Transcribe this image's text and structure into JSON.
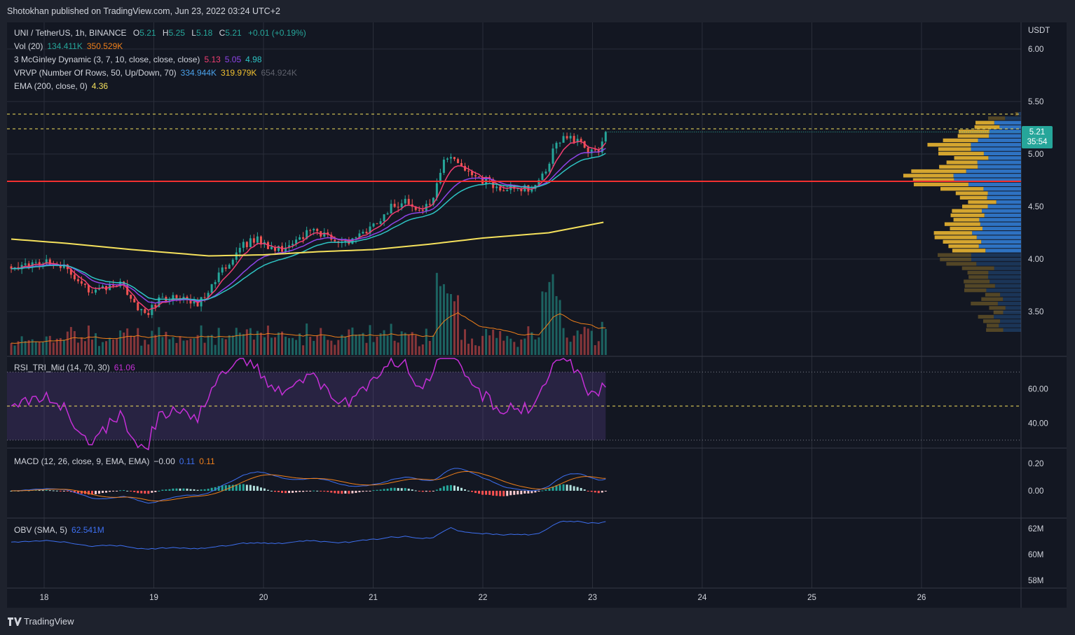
{
  "header": {
    "published_by": "Shotokhan published on TradingView.com, Jun 23, 2022 03:24 UTC+2"
  },
  "footer": {
    "brand": "TradingView"
  },
  "legend": {
    "symbol": "UNI / TetherUS, 1h, BINANCE",
    "ohlc": [
      {
        "label": "O",
        "value": "5.21"
      },
      {
        "label": "H",
        "value": "5.25"
      },
      {
        "label": "L",
        "value": "5.18"
      },
      {
        "label": "C",
        "value": "5.21"
      }
    ],
    "change": "+0.01 (+0.19%)",
    "vol": {
      "label": "Vol (20)",
      "v1": "134.411K",
      "v2": "350.529K"
    },
    "mcginley": {
      "label": "3 McGinley Dynamic (3, 7, 10, close, close, close)",
      "v1": "5.13",
      "v2": "5.05",
      "v3": "4.98"
    },
    "vrvp": {
      "label": "VRVP (Number Of Rows, 50, Up/Down, 70)",
      "v1": "334.944K",
      "v2": "319.979K",
      "v3": "654.924K"
    },
    "ema": {
      "label": "EMA (200, close, 0)",
      "v1": "4.36"
    },
    "rsi": {
      "label": "RSI_TRI_Mid (14, 70, 30)",
      "v1": "61.06"
    },
    "macd": {
      "label": "MACD (12, 26, close, 9, EMA, EMA)",
      "v1": "−0.00",
      "v2": "0.11",
      "v3": "0.11"
    },
    "obv": {
      "label": "OBV (SMA, 5)",
      "v1": "62.541M"
    }
  },
  "price_tag": {
    "price": "5.21",
    "countdown": "35:54"
  },
  "colors": {
    "up": "#26a69a",
    "down": "#ef5350",
    "bg": "#131722",
    "grid": "#2a2e39",
    "ema": "#f5e15c",
    "mg1": "#f23e72",
    "mg2": "#8e44e8",
    "mg3": "#2ec4c4",
    "rsi": "#c42fd6",
    "macd": "#3d6ff0",
    "signal": "#ef7f1a",
    "obv": "#3d6ff0",
    "resistance": "#f23030"
  },
  "chart_data": {
    "type": "candlestick",
    "title": "UNI / TetherUS, 1h, BINANCE",
    "axis_unit": "USDT",
    "x_ticks": [
      "18",
      "19",
      "20",
      "21",
      "22",
      "23",
      "24",
      "25",
      "26"
    ],
    "y_ticks": [
      "6.00",
      "5.50",
      "5.00",
      "4.50",
      "4.00",
      "3.50"
    ],
    "ylim": [
      3.2,
      6.2
    ],
    "last_price": 5.21,
    "levels": {
      "resistance_dashed_1": 5.38,
      "resistance_dashed_2": 5.24,
      "support_red": 4.74
    },
    "close_anchors": [
      [
        17.7,
        3.93
      ],
      [
        17.95,
        3.95
      ],
      [
        18.1,
        3.98
      ],
      [
        18.3,
        3.82
      ],
      [
        18.42,
        3.65
      ],
      [
        18.55,
        3.72
      ],
      [
        18.7,
        3.78
      ],
      [
        18.85,
        3.55
      ],
      [
        18.95,
        3.48
      ],
      [
        19.05,
        3.62
      ],
      [
        19.2,
        3.63
      ],
      [
        19.38,
        3.56
      ],
      [
        19.5,
        3.72
      ],
      [
        19.65,
        3.93
      ],
      [
        19.8,
        4.12
      ],
      [
        19.95,
        4.2
      ],
      [
        20.08,
        4.08
      ],
      [
        20.25,
        4.12
      ],
      [
        20.45,
        4.28
      ],
      [
        20.6,
        4.22
      ],
      [
        20.75,
        4.15
      ],
      [
        20.95,
        4.28
      ],
      [
        21.15,
        4.48
      ],
      [
        21.3,
        4.55
      ],
      [
        21.45,
        4.44
      ],
      [
        21.55,
        4.6
      ],
      [
        21.67,
        5.0
      ],
      [
        21.78,
        4.95
      ],
      [
        21.9,
        4.78
      ],
      [
        22.05,
        4.74
      ],
      [
        22.15,
        4.65
      ],
      [
        22.3,
        4.68
      ],
      [
        22.45,
        4.66
      ],
      [
        22.58,
        4.85
      ],
      [
        22.66,
        5.1
      ],
      [
        22.75,
        5.18
      ],
      [
        22.85,
        5.12
      ],
      [
        22.95,
        5.05
      ],
      [
        23.05,
        5.0
      ],
      [
        23.1,
        5.21
      ]
    ],
    "ema200_anchors": [
      [
        17.7,
        4.19
      ],
      [
        18.2,
        4.15
      ],
      [
        18.8,
        4.09
      ],
      [
        19.5,
        4.03
      ],
      [
        20.0,
        4.04
      ],
      [
        20.5,
        4.07
      ],
      [
        21.0,
        4.09
      ],
      [
        21.5,
        4.14
      ],
      [
        22.0,
        4.2
      ],
      [
        22.6,
        4.25
      ],
      [
        23.15,
        4.36
      ]
    ],
    "volume": {
      "ma_label": "Vol (20)",
      "last": 134411,
      "ma": 350529
    },
    "vrvp_profile_rows": 50,
    "rsi": {
      "last": 61.06,
      "y_ticks": [
        "60.00",
        "40.00"
      ],
      "ylim": [
        20,
        80
      ],
      "upper_band": 70,
      "lower_band": 30,
      "mid": 50
    },
    "macd": {
      "macd": -0.0,
      "signal": 0.11,
      "hist": 0.11,
      "y_ticks": [
        "0.20",
        "0.00"
      ]
    },
    "obv": {
      "last_m": 62.541,
      "y_ticks": [
        "62M",
        "60M",
        "58M"
      ]
    }
  }
}
